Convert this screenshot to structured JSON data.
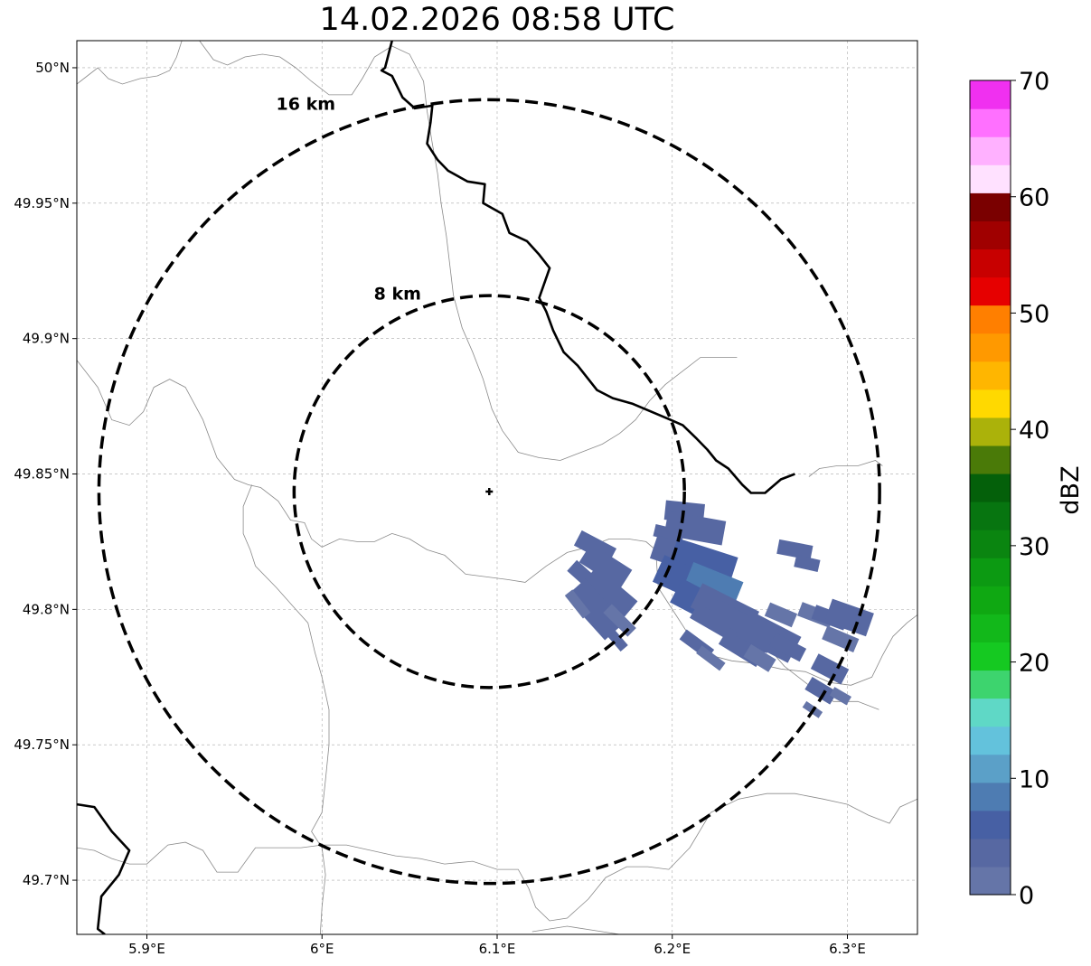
{
  "title": "14.02.2026 08:58 UTC",
  "map": {
    "lon_range": [
      5.86,
      6.34
    ],
    "lat_range": [
      49.68,
      50.01
    ],
    "lon_ticks": [
      {
        "value": 5.9,
        "label": "5.9°E"
      },
      {
        "value": 6.0,
        "label": "6°E"
      },
      {
        "value": 6.1,
        "label": "6.1°E"
      },
      {
        "value": 6.2,
        "label": "6.2°E"
      },
      {
        "value": 6.3,
        "label": "6.3°E"
      }
    ],
    "lat_ticks": [
      {
        "value": 49.7,
        "label": "49.7°N"
      },
      {
        "value": 49.75,
        "label": "49.75°N"
      },
      {
        "value": 49.8,
        "label": "49.8°N"
      },
      {
        "value": 49.85,
        "label": "49.85°N"
      },
      {
        "value": 49.9,
        "label": "49.9°N"
      },
      {
        "value": 49.95,
        "label": "49.95°N"
      },
      {
        "value": 50.0,
        "label": "50°N"
      }
    ],
    "grid": true,
    "radar_site": {
      "lon": 6.0955,
      "lat": 49.8435
    },
    "range_rings": [
      {
        "radius_km": 8,
        "label": "8 km"
      },
      {
        "radius_km": 16,
        "label": "16 km"
      }
    ]
  },
  "colorbar": {
    "label": "dBZ",
    "min": 0,
    "max": 70,
    "ticks": [
      0,
      10,
      20,
      30,
      40,
      50,
      60,
      70
    ],
    "colors": [
      "#6575a8",
      "#5768a2",
      "#4760a4",
      "#4e7cb2",
      "#5ba0c8",
      "#63c2dc",
      "#5fd8c6",
      "#3dd46e",
      "#15c921",
      "#12b81a",
      "#0fa812",
      "#0c9a12",
      "#0a8510",
      "#077510",
      "#04600a",
      "#4a7a08",
      "#abb20a",
      "#ffd900",
      "#ffb600",
      "#ff9900",
      "#ff7f00",
      "#e60000",
      "#c80000",
      "#a00000",
      "#7a0000",
      "#ffe1ff",
      "#ffb1ff",
      "#ff70ff",
      "#f030f0"
    ]
  },
  "echoes": [
    {
      "lon": 6.156,
      "lat": 49.823,
      "len_km": 1.6,
      "wid_km": 0.7,
      "dbz": 3
    },
    {
      "lon": 6.162,
      "lat": 49.816,
      "len_km": 2.0,
      "wid_km": 0.9,
      "dbz": 3
    },
    {
      "lon": 6.15,
      "lat": 49.812,
      "len_km": 1.4,
      "wid_km": 0.6,
      "dbz": 3
    },
    {
      "lon": 6.164,
      "lat": 49.806,
      "len_km": 2.2,
      "wid_km": 1.0,
      "dbz": 4
    },
    {
      "lon": 6.156,
      "lat": 49.8,
      "len_km": 2.4,
      "wid_km": 1.1,
      "dbz": 3
    },
    {
      "lon": 6.146,
      "lat": 49.802,
      "len_km": 1.2,
      "wid_km": 0.4,
      "dbz": 2
    },
    {
      "lon": 6.17,
      "lat": 49.796,
      "len_km": 1.4,
      "wid_km": 0.5,
      "dbz": 2
    },
    {
      "lon": 6.168,
      "lat": 49.789,
      "len_km": 1.0,
      "wid_km": 0.4,
      "dbz": 3
    },
    {
      "lon": 6.207,
      "lat": 49.836,
      "len_km": 1.6,
      "wid_km": 0.8,
      "dbz": 3
    },
    {
      "lon": 6.213,
      "lat": 49.83,
      "len_km": 2.4,
      "wid_km": 1.0,
      "dbz": 4
    },
    {
      "lon": 6.198,
      "lat": 49.828,
      "len_km": 1.2,
      "wid_km": 0.5,
      "dbz": 3
    },
    {
      "lon": 6.204,
      "lat": 49.82,
      "len_km": 2.2,
      "wid_km": 1.0,
      "dbz": 4
    },
    {
      "lon": 6.218,
      "lat": 49.818,
      "len_km": 2.6,
      "wid_km": 1.1,
      "dbz": 5
    },
    {
      "lon": 6.21,
      "lat": 49.81,
      "len_km": 2.8,
      "wid_km": 1.2,
      "dbz": 6
    },
    {
      "lon": 6.224,
      "lat": 49.81,
      "len_km": 2.2,
      "wid_km": 0.9,
      "dbz": 8
    },
    {
      "lon": 6.217,
      "lat": 49.802,
      "len_km": 2.4,
      "wid_km": 1.1,
      "dbz": 5
    },
    {
      "lon": 6.23,
      "lat": 49.8,
      "len_km": 2.6,
      "wid_km": 1.1,
      "dbz": 4
    },
    {
      "lon": 6.222,
      "lat": 49.796,
      "len_km": 1.6,
      "wid_km": 0.7,
      "dbz": 3
    },
    {
      "lon": 6.237,
      "lat": 49.794,
      "len_km": 2.4,
      "wid_km": 1.2,
      "dbz": 4
    },
    {
      "lon": 6.245,
      "lat": 49.792,
      "len_km": 2.0,
      "wid_km": 1.0,
      "dbz": 3
    },
    {
      "lon": 6.24,
      "lat": 49.786,
      "len_km": 1.8,
      "wid_km": 0.8,
      "dbz": 3
    },
    {
      "lon": 6.255,
      "lat": 49.79,
      "len_km": 2.4,
      "wid_km": 1.2,
      "dbz": 3
    },
    {
      "lon": 6.262,
      "lat": 49.798,
      "len_km": 1.2,
      "wid_km": 0.6,
      "dbz": 2
    },
    {
      "lon": 6.266,
      "lat": 49.786,
      "len_km": 1.4,
      "wid_km": 0.6,
      "dbz": 3
    },
    {
      "lon": 6.25,
      "lat": 49.782,
      "len_km": 1.2,
      "wid_km": 0.6,
      "dbz": 2
    },
    {
      "lon": 6.214,
      "lat": 49.787,
      "len_km": 1.4,
      "wid_km": 0.5,
      "dbz": 3
    },
    {
      "lon": 6.222,
      "lat": 49.782,
      "len_km": 1.2,
      "wid_km": 0.4,
      "dbz": 2
    },
    {
      "lon": 6.27,
      "lat": 49.822,
      "len_km": 1.4,
      "wid_km": 0.6,
      "dbz": 3
    },
    {
      "lon": 6.277,
      "lat": 49.817,
      "len_km": 1.0,
      "wid_km": 0.5,
      "dbz": 3
    },
    {
      "lon": 6.282,
      "lat": 49.798,
      "len_km": 1.4,
      "wid_km": 0.6,
      "dbz": 2
    },
    {
      "lon": 6.29,
      "lat": 49.797,
      "len_km": 1.4,
      "wid_km": 0.6,
      "dbz": 3
    },
    {
      "lon": 6.301,
      "lat": 49.797,
      "len_km": 1.8,
      "wid_km": 1.0,
      "dbz": 3
    },
    {
      "lon": 6.296,
      "lat": 49.789,
      "len_km": 1.4,
      "wid_km": 0.6,
      "dbz": 2
    },
    {
      "lon": 6.29,
      "lat": 49.778,
      "len_km": 1.4,
      "wid_km": 0.7,
      "dbz": 3
    },
    {
      "lon": 6.285,
      "lat": 49.77,
      "len_km": 1.2,
      "wid_km": 0.6,
      "dbz": 3
    },
    {
      "lon": 6.296,
      "lat": 49.768,
      "len_km": 0.8,
      "wid_km": 0.4,
      "dbz": 2
    },
    {
      "lon": 6.28,
      "lat": 49.763,
      "len_km": 0.8,
      "wid_km": 0.3,
      "dbz": 2
    }
  ],
  "borders": {
    "thick": [
      [
        [
          6.04,
          50.01
        ],
        [
          6.036,
          50.0
        ],
        [
          6.034,
          49.999
        ],
        [
          6.04,
          49.997
        ],
        [
          6.046,
          49.989
        ],
        [
          6.053,
          49.985
        ],
        [
          6.063,
          49.986
        ],
        [
          6.062,
          49.98
        ],
        [
          6.06,
          49.972
        ],
        [
          6.066,
          49.966
        ],
        [
          6.072,
          49.962
        ],
        [
          6.083,
          49.958
        ],
        [
          6.093,
          49.957
        ],
        [
          6.092,
          49.95
        ],
        [
          6.103,
          49.946
        ],
        [
          6.107,
          49.939
        ],
        [
          6.117,
          49.936
        ],
        [
          6.124,
          49.931
        ],
        [
          6.13,
          49.926
        ],
        [
          6.124,
          49.915
        ],
        [
          6.128,
          49.91
        ],
        [
          6.132,
          49.903
        ],
        [
          6.138,
          49.895
        ],
        [
          6.146,
          49.89
        ],
        [
          6.157,
          49.881
        ],
        [
          6.166,
          49.878
        ],
        [
          6.177,
          49.876
        ],
        [
          6.188,
          49.873
        ],
        [
          6.199,
          49.87
        ],
        [
          6.206,
          49.868
        ],
        [
          6.214,
          49.863
        ],
        [
          6.22,
          49.859
        ],
        [
          6.225,
          49.855
        ],
        [
          6.232,
          49.852
        ],
        [
          6.24,
          49.846
        ],
        [
          6.245,
          49.843
        ],
        [
          6.253,
          49.843
        ],
        [
          6.262,
          49.848
        ],
        [
          6.27,
          49.85
        ]
      ],
      [
        [
          5.86,
          49.728
        ],
        [
          5.87,
          49.727
        ],
        [
          5.88,
          49.718
        ],
        [
          5.89,
          49.711
        ],
        [
          5.884,
          49.702
        ],
        [
          5.874,
          49.694
        ],
        [
          5.872,
          49.682
        ],
        [
          5.876,
          49.68
        ]
      ]
    ],
    "thin": [
      [
        [
          5.86,
          49.994
        ],
        [
          5.866,
          49.997
        ],
        [
          5.872,
          50.0
        ],
        [
          5.878,
          49.996
        ],
        [
          5.886,
          49.994
        ],
        [
          5.896,
          49.996
        ],
        [
          5.906,
          49.997
        ],
        [
          5.913,
          49.999
        ],
        [
          5.917,
          50.004
        ],
        [
          5.92,
          50.01
        ]
      ],
      [
        [
          5.93,
          50.01
        ],
        [
          5.938,
          50.003
        ],
        [
          5.946,
          50.001
        ],
        [
          5.956,
          50.004
        ],
        [
          5.966,
          50.005
        ],
        [
          5.976,
          50.004
        ],
        [
          5.985,
          50.0
        ],
        [
          5.994,
          49.995
        ],
        [
          6.004,
          49.99
        ],
        [
          6.017,
          49.99
        ],
        [
          6.023,
          49.996
        ],
        [
          6.03,
          50.004
        ],
        [
          6.04,
          50.008
        ],
        [
          6.05,
          50.005
        ],
        [
          6.058,
          49.995
        ],
        [
          6.06,
          49.984
        ],
        [
          6.063,
          49.972
        ],
        [
          6.066,
          49.961
        ],
        [
          6.068,
          49.95
        ],
        [
          6.071,
          49.938
        ],
        [
          6.073,
          49.927
        ],
        [
          6.075,
          49.916
        ],
        [
          6.08,
          49.904
        ],
        [
          6.086,
          49.895
        ],
        [
          6.092,
          49.885
        ],
        [
          6.097,
          49.874
        ],
        [
          6.103,
          49.866
        ],
        [
          6.112,
          49.858
        ],
        [
          6.124,
          49.856
        ],
        [
          6.136,
          49.855
        ],
        [
          6.148,
          49.858
        ],
        [
          6.16,
          49.861
        ],
        [
          6.17,
          49.865
        ],
        [
          6.179,
          49.87
        ],
        [
          6.187,
          49.877
        ],
        [
          6.196,
          49.883
        ],
        [
          6.206,
          49.888
        ],
        [
          6.216,
          49.893
        ],
        [
          6.226,
          49.893
        ],
        [
          6.237,
          49.893
        ]
      ],
      [
        [
          5.86,
          49.892
        ],
        [
          5.872,
          49.882
        ],
        [
          5.88,
          49.87
        ],
        [
          5.89,
          49.868
        ],
        [
          5.898,
          49.873
        ],
        [
          5.904,
          49.882
        ],
        [
          5.913,
          49.885
        ],
        [
          5.922,
          49.882
        ],
        [
          5.932,
          49.87
        ],
        [
          5.94,
          49.856
        ],
        [
          5.95,
          49.848
        ],
        [
          5.958,
          49.846
        ],
        [
          5.965,
          49.845
        ],
        [
          5.975,
          49.84
        ],
        [
          5.982,
          49.833
        ],
        [
          5.99,
          49.832
        ],
        [
          5.994,
          49.826
        ],
        [
          6.0,
          49.823
        ],
        [
          6.01,
          49.826
        ],
        [
          6.02,
          49.825
        ],
        [
          6.03,
          49.825
        ],
        [
          6.04,
          49.828
        ],
        [
          6.05,
          49.826
        ],
        [
          6.06,
          49.822
        ],
        [
          6.07,
          49.82
        ],
        [
          6.082,
          49.813
        ],
        [
          6.094,
          49.812
        ],
        [
          6.106,
          49.811
        ],
        [
          6.116,
          49.81
        ],
        [
          6.128,
          49.816
        ],
        [
          6.14,
          49.821
        ],
        [
          6.152,
          49.823
        ],
        [
          6.164,
          49.826
        ],
        [
          6.175,
          49.826
        ],
        [
          6.185,
          49.825
        ],
        [
          6.194,
          49.82
        ],
        [
          6.2,
          49.812
        ],
        [
          6.212,
          49.805
        ],
        [
          6.224,
          49.803
        ],
        [
          6.236,
          49.8
        ],
        [
          6.246,
          49.797
        ],
        [
          6.252,
          49.788
        ],
        [
          6.264,
          49.779
        ],
        [
          6.278,
          49.772
        ],
        [
          6.292,
          49.766
        ],
        [
          6.306,
          49.766
        ],
        [
          6.318,
          49.763
        ]
      ],
      [
        [
          5.96,
          49.846
        ],
        [
          5.955,
          49.838
        ],
        [
          5.955,
          49.828
        ],
        [
          5.959,
          49.822
        ],
        [
          5.962,
          49.816
        ],
        [
          5.974,
          49.808
        ],
        [
          5.985,
          49.8
        ],
        [
          5.992,
          49.795
        ],
        [
          5.996,
          49.784
        ],
        [
          6.0,
          49.775
        ],
        [
          6.004,
          49.763
        ],
        [
          6.004,
          49.75
        ],
        [
          6.002,
          49.737
        ],
        [
          6.0,
          49.725
        ],
        [
          5.994,
          49.718
        ],
        [
          6.0,
          49.712
        ],
        [
          6.002,
          49.702
        ],
        [
          6.0,
          49.69
        ],
        [
          5.999,
          49.68
        ]
      ],
      [
        [
          5.86,
          49.712
        ],
        [
          5.87,
          49.711
        ],
        [
          5.88,
          49.708
        ],
        [
          5.89,
          49.706
        ],
        [
          5.9,
          49.706
        ],
        [
          5.912,
          49.713
        ],
        [
          5.922,
          49.714
        ],
        [
          5.932,
          49.711
        ],
        [
          5.94,
          49.703
        ],
        [
          5.952,
          49.703
        ],
        [
          5.962,
          49.712
        ],
        [
          5.976,
          49.712
        ],
        [
          5.988,
          49.712
        ],
        [
          6.0,
          49.713
        ],
        [
          6.014,
          49.713
        ],
        [
          6.028,
          49.711
        ],
        [
          6.042,
          49.709
        ],
        [
          6.056,
          49.708
        ],
        [
          6.07,
          49.706
        ],
        [
          6.086,
          49.707
        ],
        [
          6.1,
          49.704
        ],
        [
          6.112,
          49.704
        ],
        [
          6.118,
          49.697
        ],
        [
          6.122,
          49.69
        ],
        [
          6.13,
          49.685
        ],
        [
          6.14,
          49.686
        ],
        [
          6.152,
          49.693
        ],
        [
          6.162,
          49.701
        ],
        [
          6.174,
          49.705
        ],
        [
          6.186,
          49.705
        ],
        [
          6.198,
          49.704
        ],
        [
          6.21,
          49.712
        ],
        [
          6.222,
          49.725
        ],
        [
          6.238,
          49.73
        ],
        [
          6.254,
          49.732
        ],
        [
          6.27,
          49.732
        ],
        [
          6.286,
          49.73
        ],
        [
          6.3,
          49.728
        ],
        [
          6.312,
          49.724
        ],
        [
          6.324,
          49.721
        ],
        [
          6.33,
          49.727
        ],
        [
          6.34,
          49.73
        ]
      ],
      [
        [
          6.196,
          49.828
        ],
        [
          6.191,
          49.818
        ],
        [
          6.192,
          49.808
        ],
        [
          6.2,
          49.8
        ],
        [
          6.21,
          49.79
        ],
        [
          6.222,
          49.783
        ],
        [
          6.234,
          49.781
        ],
        [
          6.248,
          49.78
        ],
        [
          6.262,
          49.778
        ],
        [
          6.276,
          49.777
        ],
        [
          6.29,
          49.773
        ],
        [
          6.302,
          49.772
        ],
        [
          6.314,
          49.775
        ],
        [
          6.32,
          49.783
        ],
        [
          6.326,
          49.79
        ],
        [
          6.334,
          49.795
        ],
        [
          6.34,
          49.798
        ]
      ],
      [
        [
          6.278,
          49.849
        ],
        [
          6.284,
          49.852
        ],
        [
          6.294,
          49.853
        ],
        [
          6.306,
          49.853
        ],
        [
          6.316,
          49.855
        ],
        [
          6.32,
          49.853
        ]
      ],
      [
        [
          6.12,
          49.681
        ],
        [
          6.14,
          49.683
        ],
        [
          6.16,
          49.681
        ],
        [
          6.17,
          49.68
        ]
      ]
    ]
  }
}
